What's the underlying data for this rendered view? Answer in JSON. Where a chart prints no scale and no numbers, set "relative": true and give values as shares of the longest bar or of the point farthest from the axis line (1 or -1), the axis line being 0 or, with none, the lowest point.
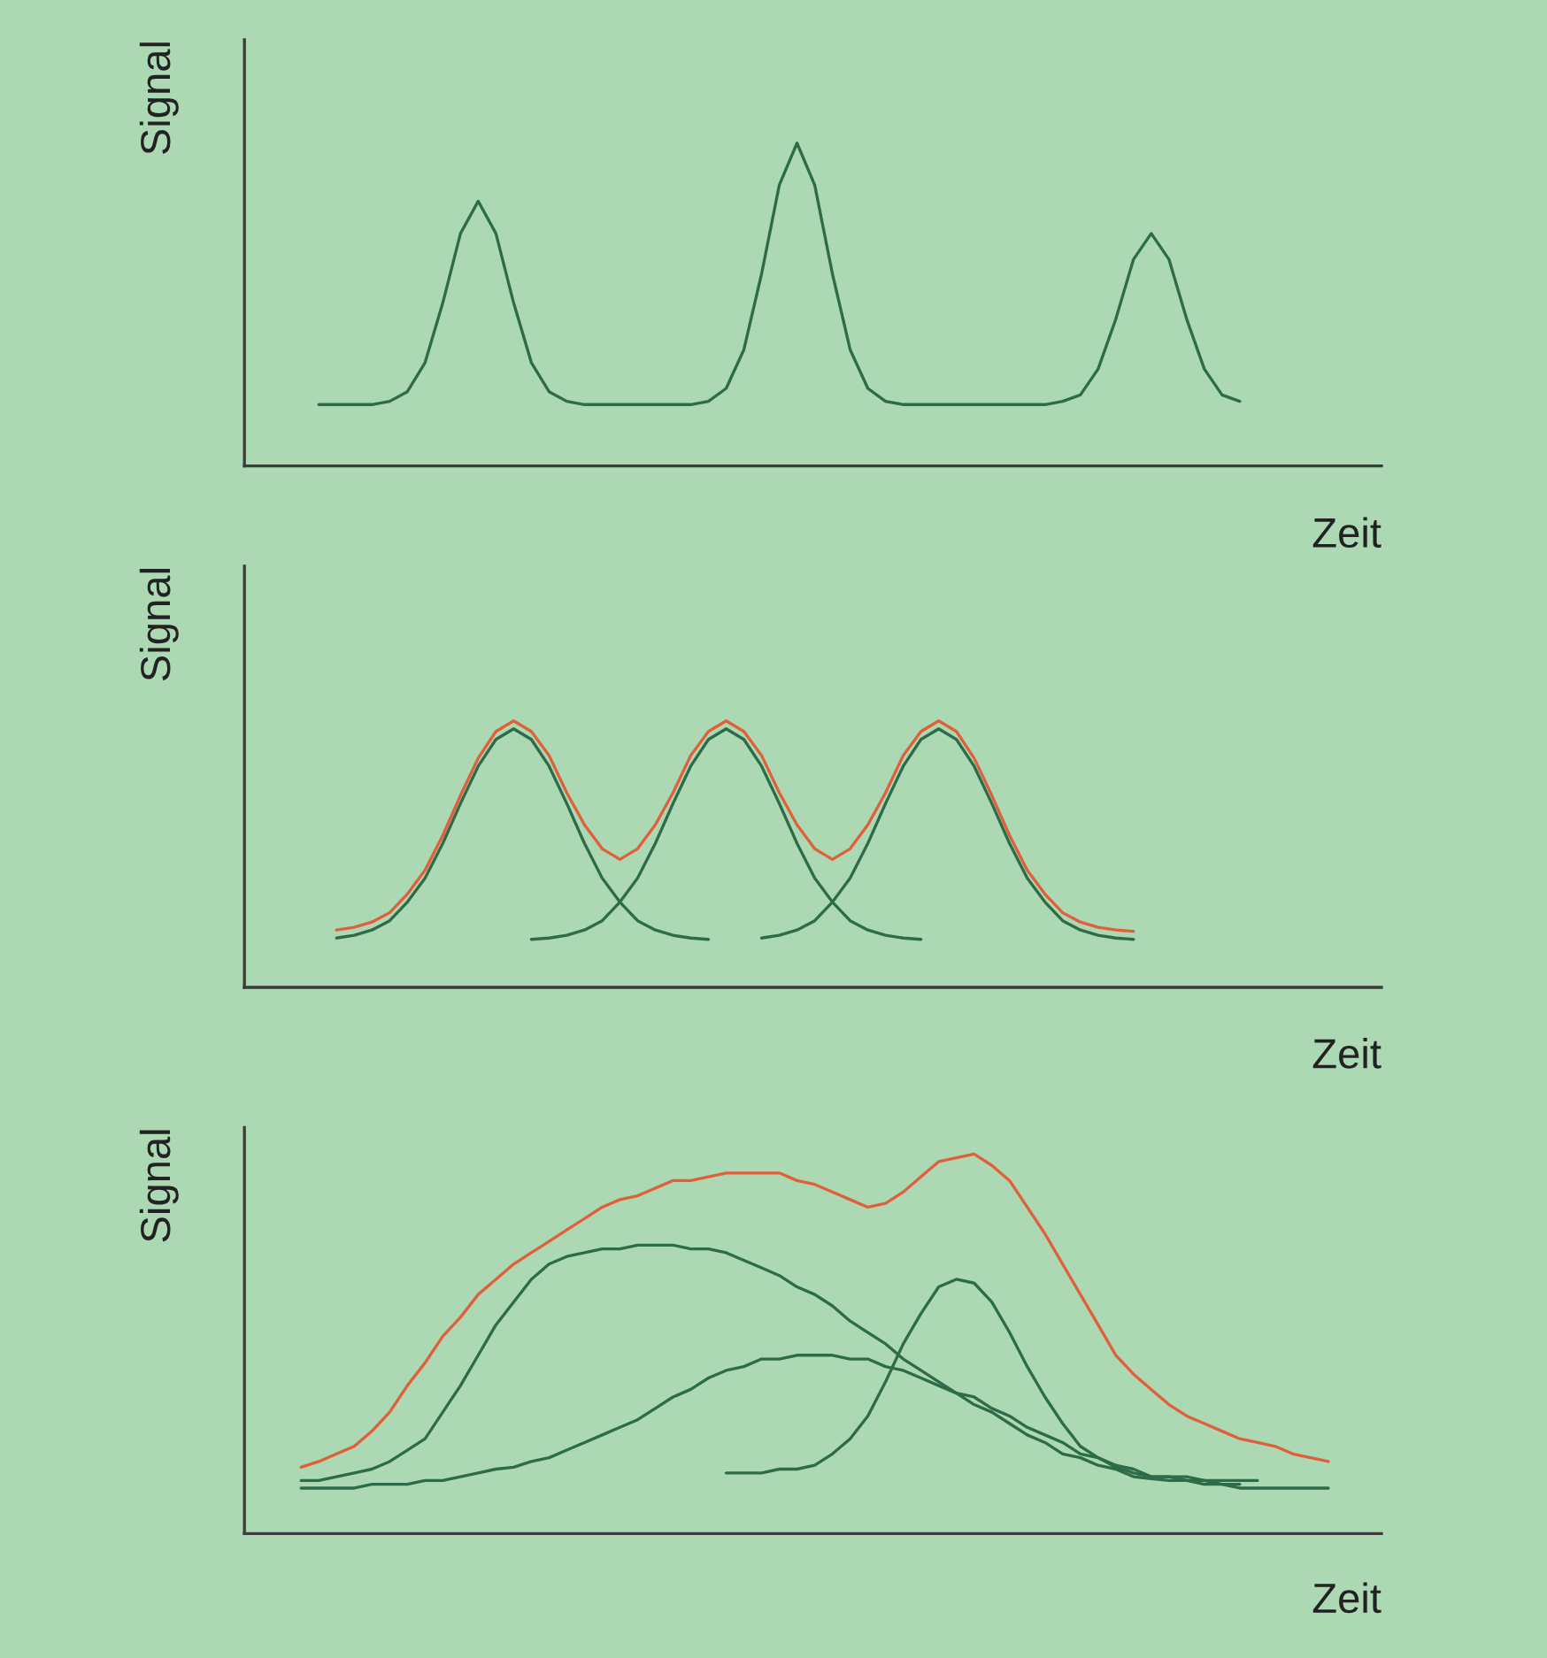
{
  "chart_data": [
    {
      "type": "line",
      "relative": true,
      "ylabel": "Signal",
      "xlabel": "Zeit",
      "categories": [
        null,
        null,
        null,
        null,
        null,
        null,
        null,
        null,
        null,
        null,
        null,
        null,
        null,
        null,
        null,
        null,
        null,
        null,
        null,
        null,
        null,
        null,
        null,
        null,
        null,
        null,
        null,
        null,
        null,
        null,
        null,
        null,
        null,
        null,
        null,
        null,
        null,
        null,
        null,
        null,
        null,
        null,
        null,
        null,
        null,
        null,
        null,
        null,
        null,
        null,
        null,
        null,
        null,
        null,
        null,
        null,
        null,
        null,
        null,
        null,
        null,
        null,
        null,
        null,
        null
      ],
      "series": [
        {
          "color": "#2e6b48",
          "values": [
            null,
            null,
            null,
            null,
            0.19,
            0.19,
            0.19,
            0.19,
            0.2,
            0.23,
            0.32,
            0.505,
            0.72,
            0.82,
            0.72,
            0.505,
            0.32,
            0.23,
            0.2,
            0.19,
            0.19,
            0.19,
            0.19,
            0.19,
            0.19,
            0.19,
            0.2,
            0.24,
            0.36,
            0.595,
            0.87,
            1.0,
            0.87,
            0.595,
            0.36,
            0.24,
            0.2,
            0.19,
            0.19,
            0.19,
            0.19,
            0.19,
            0.19,
            0.19,
            0.19,
            0.19,
            0.2,
            0.22,
            0.3,
            0.455,
            0.64,
            0.72,
            0.64,
            0.455,
            0.3,
            0.22,
            0.2,
            null,
            null,
            null,
            null,
            null,
            null,
            null,
            null
          ]
        }
      ]
    },
    {
      "type": "line",
      "relative": true,
      "ylabel": "Signal",
      "xlabel": "Zeit",
      "categories": [
        null,
        null,
        null,
        null,
        null,
        null,
        null,
        null,
        null,
        null,
        null,
        null,
        null,
        null,
        null,
        null,
        null,
        null,
        null,
        null,
        null,
        null,
        null,
        null,
        null,
        null,
        null,
        null,
        null,
        null,
        null,
        null,
        null,
        null,
        null,
        null,
        null,
        null,
        null,
        null,
        null,
        null,
        null,
        null,
        null,
        null,
        null,
        null,
        null,
        null,
        null,
        null,
        null,
        null,
        null,
        null,
        null,
        null,
        null,
        null,
        null,
        null,
        null,
        null,
        null
      ],
      "series": [
        {
          "color": "#2e6b48",
          "values": [
            null,
            null,
            null,
            null,
            null,
            0.185,
            0.195,
            0.215,
            0.25,
            0.32,
            0.41,
            0.54,
            0.69,
            0.83,
            0.93,
            0.97,
            0.93,
            0.83,
            0.69,
            0.54,
            0.41,
            0.32,
            0.25,
            0.215,
            0.195,
            0.185,
            0.18,
            null,
            null,
            null,
            null,
            null,
            null,
            null,
            null,
            null,
            null,
            null,
            null,
            null,
            null,
            null,
            null,
            null,
            null,
            null,
            null,
            null,
            null,
            null,
            null,
            null,
            null,
            null,
            null,
            null,
            null,
            null,
            null,
            null,
            null,
            null,
            null,
            null,
            null
          ]
        },
        {
          "color": "#2e6b48",
          "values": [
            null,
            null,
            null,
            null,
            null,
            null,
            null,
            null,
            null,
            null,
            null,
            null,
            null,
            null,
            null,
            null,
            0.18,
            0.185,
            0.195,
            0.215,
            0.25,
            0.32,
            0.41,
            0.54,
            0.69,
            0.83,
            0.93,
            0.97,
            0.93,
            0.83,
            0.69,
            0.54,
            0.41,
            0.32,
            0.25,
            0.215,
            0.195,
            0.185,
            0.18,
            null,
            null,
            null,
            null,
            null,
            null,
            null,
            null,
            null,
            null,
            null,
            null,
            null,
            null,
            null,
            null,
            null,
            null,
            null,
            null,
            null,
            null,
            null,
            null,
            null,
            null
          ]
        },
        {
          "color": "#2e6b48",
          "values": [
            null,
            null,
            null,
            null,
            null,
            null,
            null,
            null,
            null,
            null,
            null,
            null,
            null,
            null,
            null,
            null,
            null,
            null,
            null,
            null,
            null,
            null,
            null,
            null,
            null,
            null,
            null,
            null,
            null,
            0.185,
            0.195,
            0.215,
            0.25,
            0.32,
            0.41,
            0.54,
            0.69,
            0.83,
            0.93,
            0.97,
            0.93,
            0.83,
            0.69,
            0.54,
            0.41,
            0.32,
            0.25,
            0.215,
            0.195,
            0.185,
            0.18,
            null,
            null,
            null,
            null,
            null,
            null,
            null,
            null,
            null,
            null,
            null,
            null,
            null,
            null
          ]
        },
        {
          "color": "#e0603c",
          "values": [
            null,
            null,
            null,
            null,
            null,
            0.215,
            0.225,
            0.245,
            0.28,
            0.35,
            0.44,
            0.57,
            0.72,
            0.86,
            0.96,
            1.0,
            0.96,
            0.87,
            0.73,
            0.61,
            0.52,
            0.48,
            0.52,
            0.61,
            0.73,
            0.87,
            0.96,
            1.0,
            0.96,
            0.87,
            0.73,
            0.61,
            0.52,
            0.48,
            0.52,
            0.61,
            0.73,
            0.87,
            0.96,
            1.0,
            0.96,
            0.86,
            0.72,
            0.57,
            0.44,
            0.35,
            0.28,
            0.245,
            0.225,
            0.215,
            0.21,
            null,
            null,
            null,
            null,
            null,
            null,
            null,
            null,
            null,
            null,
            null,
            null,
            null,
            null
          ]
        }
      ]
    },
    {
      "type": "line",
      "relative": true,
      "ylabel": "Signal",
      "xlabel": "Zeit",
      "categories": [
        null,
        null,
        null,
        null,
        null,
        null,
        null,
        null,
        null,
        null,
        null,
        null,
        null,
        null,
        null,
        null,
        null,
        null,
        null,
        null,
        null,
        null,
        null,
        null,
        null,
        null,
        null,
        null,
        null,
        null,
        null,
        null,
        null,
        null,
        null,
        null,
        null,
        null,
        null,
        null,
        null,
        null,
        null,
        null,
        null,
        null,
        null,
        null,
        null,
        null,
        null,
        null,
        null,
        null,
        null,
        null,
        null,
        null,
        null,
        null,
        null,
        null,
        null,
        null,
        null
      ],
      "series": [
        {
          "color": "#2e6b48",
          "values": [
            null,
            null,
            null,
            0.14,
            0.14,
            0.15,
            0.16,
            0.17,
            0.19,
            0.22,
            0.25,
            0.32,
            0.39,
            0.47,
            0.55,
            0.61,
            0.67,
            0.71,
            0.73,
            0.74,
            0.75,
            0.75,
            0.76,
            0.76,
            0.76,
            0.75,
            0.75,
            0.74,
            0.72,
            0.7,
            0.68,
            0.65,
            0.63,
            0.6,
            0.56,
            0.53,
            0.5,
            0.46,
            0.43,
            0.4,
            0.37,
            0.34,
            0.32,
            0.29,
            0.26,
            0.24,
            0.21,
            0.2,
            0.18,
            0.17,
            0.15,
            0.145,
            0.14,
            0.14,
            0.14,
            0.13,
            0.13,
            null,
            null,
            null,
            null,
            null,
            null,
            null,
            null
          ]
        },
        {
          "color": "#2e6b48",
          "values": [
            null,
            null,
            null,
            0.12,
            0.12,
            0.12,
            0.12,
            0.13,
            0.13,
            0.13,
            0.14,
            0.14,
            0.15,
            0.16,
            0.17,
            0.175,
            0.19,
            0.2,
            0.22,
            0.24,
            0.26,
            0.28,
            0.3,
            0.33,
            0.36,
            0.38,
            0.41,
            0.43,
            0.44,
            0.46,
            0.46,
            0.47,
            0.47,
            0.47,
            0.46,
            0.46,
            0.44,
            0.43,
            0.41,
            0.39,
            0.37,
            0.36,
            0.33,
            0.31,
            0.28,
            0.26,
            0.24,
            0.21,
            0.2,
            0.18,
            0.17,
            0.15,
            0.15,
            0.14,
            0.13,
            0.13,
            0.12,
            0.12,
            0.12,
            0.12,
            0.12,
            0.12,
            null,
            null,
            null
          ]
        },
        {
          "color": "#2e6b48",
          "values": [
            null,
            null,
            null,
            null,
            null,
            null,
            null,
            null,
            null,
            null,
            null,
            null,
            null,
            null,
            null,
            null,
            null,
            null,
            null,
            null,
            null,
            null,
            null,
            null,
            null,
            null,
            null,
            0.16,
            0.16,
            0.16,
            0.17,
            0.17,
            0.18,
            0.21,
            0.25,
            0.31,
            0.4,
            0.5,
            0.58,
            0.65,
            0.67,
            0.66,
            0.61,
            0.53,
            0.44,
            0.36,
            0.29,
            0.23,
            0.2,
            0.175,
            0.16,
            0.15,
            0.15,
            0.15,
            0.14,
            0.14,
            0.14,
            0.14,
            null,
            null,
            null,
            null,
            null,
            null,
            null
          ]
        },
        {
          "color": "#e0603c",
          "values": [
            null,
            null,
            null,
            0.175,
            0.19,
            0.21,
            0.23,
            0.27,
            0.32,
            0.39,
            0.45,
            0.52,
            0.57,
            0.63,
            0.67,
            0.71,
            0.74,
            0.77,
            0.8,
            0.83,
            0.86,
            0.88,
            0.89,
            0.91,
            0.93,
            0.93,
            0.94,
            0.95,
            0.95,
            0.95,
            0.95,
            0.93,
            0.92,
            0.9,
            0.88,
            0.86,
            0.87,
            0.9,
            0.94,
            0.98,
            0.99,
            1.0,
            0.97,
            0.93,
            0.86,
            0.79,
            0.71,
            0.63,
            0.55,
            0.47,
            0.42,
            0.38,
            0.34,
            0.31,
            0.29,
            0.27,
            0.25,
            0.24,
            0.23,
            0.21,
            0.2,
            0.19,
            null,
            null,
            null
          ]
        }
      ]
    }
  ]
}
